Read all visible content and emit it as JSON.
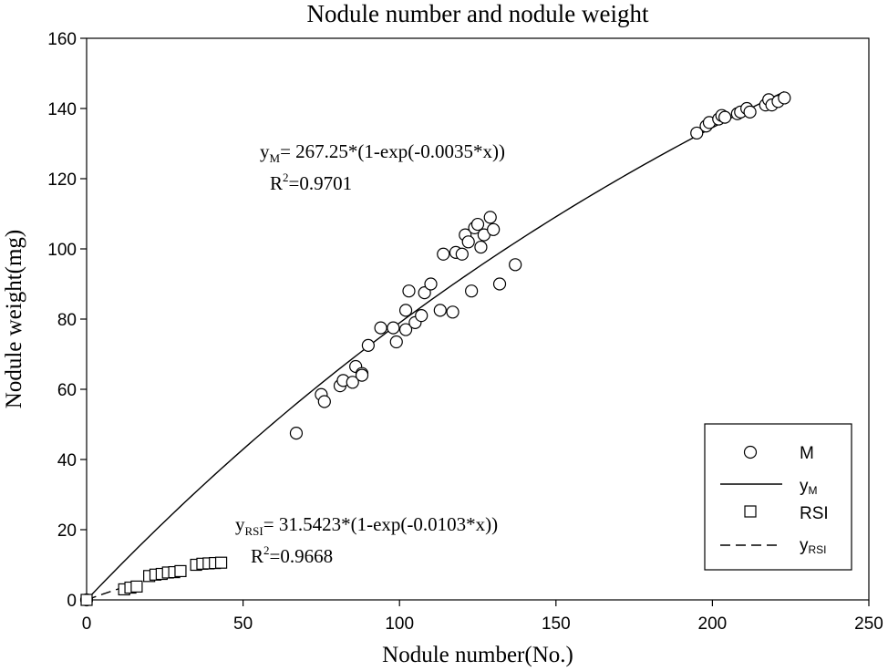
{
  "chart_data": {
    "type": "scatter",
    "title": "Nodule number and nodule weight",
    "xlabel": "Nodule number(No.)",
    "ylabel": "Nodule weight(mg)",
    "xlim": [
      0,
      250
    ],
    "ylim": [
      0,
      160
    ],
    "xticks": [
      0,
      50,
      100,
      150,
      200,
      250
    ],
    "yticks": [
      0,
      20,
      40,
      60,
      80,
      100,
      120,
      140,
      160
    ],
    "grid": false,
    "legend": {
      "position": "bottom-right",
      "entries": [
        {
          "label": "M",
          "marker": "circle"
        },
        {
          "label": "y",
          "sub": "M",
          "line": "solid"
        },
        {
          "label": "RSI",
          "marker": "square"
        },
        {
          "label": "y",
          "sub": "RSI",
          "line": "dashed"
        }
      ]
    },
    "series": [
      {
        "name": "M",
        "marker": "circle",
        "points": [
          [
            0,
            0
          ],
          [
            67,
            47.5
          ],
          [
            75,
            58.5
          ],
          [
            76,
            56.5
          ],
          [
            81,
            61
          ],
          [
            82,
            62.5
          ],
          [
            85,
            62
          ],
          [
            86,
            66.5
          ],
          [
            88,
            64.5
          ],
          [
            88,
            64
          ],
          [
            90,
            72.5
          ],
          [
            94,
            77.5
          ],
          [
            98,
            77.5
          ],
          [
            99,
            73.5
          ],
          [
            102,
            82.5
          ],
          [
            102,
            77
          ],
          [
            103,
            88
          ],
          [
            105,
            79
          ],
          [
            107,
            81
          ],
          [
            108,
            87.5
          ],
          [
            110,
            90
          ],
          [
            113,
            82.5
          ],
          [
            114,
            98.5
          ],
          [
            117,
            82
          ],
          [
            118,
            99
          ],
          [
            120,
            98.5
          ],
          [
            121,
            104
          ],
          [
            122,
            102
          ],
          [
            123,
            88
          ],
          [
            124,
            106
          ],
          [
            125,
            107
          ],
          [
            126,
            100.5
          ],
          [
            127,
            104
          ],
          [
            129,
            109
          ],
          [
            130,
            105.5
          ],
          [
            132,
            90
          ],
          [
            137,
            95.5
          ],
          [
            195,
            133
          ],
          [
            198,
            135
          ],
          [
            199,
            136
          ],
          [
            202,
            137
          ],
          [
            203,
            138
          ],
          [
            204,
            137.5
          ],
          [
            208,
            138.5
          ],
          [
            209,
            139
          ],
          [
            211,
            140
          ],
          [
            212,
            139
          ],
          [
            217,
            141
          ],
          [
            218,
            142.5
          ],
          [
            219,
            141
          ],
          [
            221,
            142
          ],
          [
            223,
            143
          ]
        ]
      },
      {
        "name": "RSI",
        "marker": "square",
        "points": [
          [
            0,
            0
          ],
          [
            12,
            3
          ],
          [
            14,
            3.5
          ],
          [
            16,
            3.8
          ],
          [
            20,
            6.8
          ],
          [
            22,
            7.2
          ],
          [
            24,
            7.4
          ],
          [
            26,
            7.8
          ],
          [
            28,
            7.9
          ],
          [
            30,
            8.2
          ],
          [
            35,
            10
          ],
          [
            37,
            10.3
          ],
          [
            39,
            10.4
          ],
          [
            41,
            10.5
          ],
          [
            43,
            10.6
          ]
        ]
      }
    ],
    "fits": [
      {
        "name": "yM",
        "model": "a*(1-exp(-b*x))",
        "a": 267.25,
        "b": 0.0035,
        "x_range": [
          0,
          223
        ],
        "line": "solid"
      },
      {
        "name": "yRSI",
        "model": "a*(1-exp(-b*x))",
        "a": 31.5423,
        "b": 0.0103,
        "x_range": [
          0,
          43
        ],
        "line": "dashed"
      }
    ],
    "annotations": {
      "m_eq": {
        "y": "y",
        "sub": "M",
        "text": "= 267.25*(1-exp(-0.0035*x))"
      },
      "m_r2": {
        "r": "R",
        "sup": "2",
        "text": "=0.9701"
      },
      "rsi_eq": {
        "y": "y",
        "sub": "RSI",
        "text": "= 31.5423*(1-exp(-0.0103*x))"
      },
      "rsi_r2": {
        "r": "R",
        "sup": "2",
        "text": "=0.9668"
      }
    }
  }
}
